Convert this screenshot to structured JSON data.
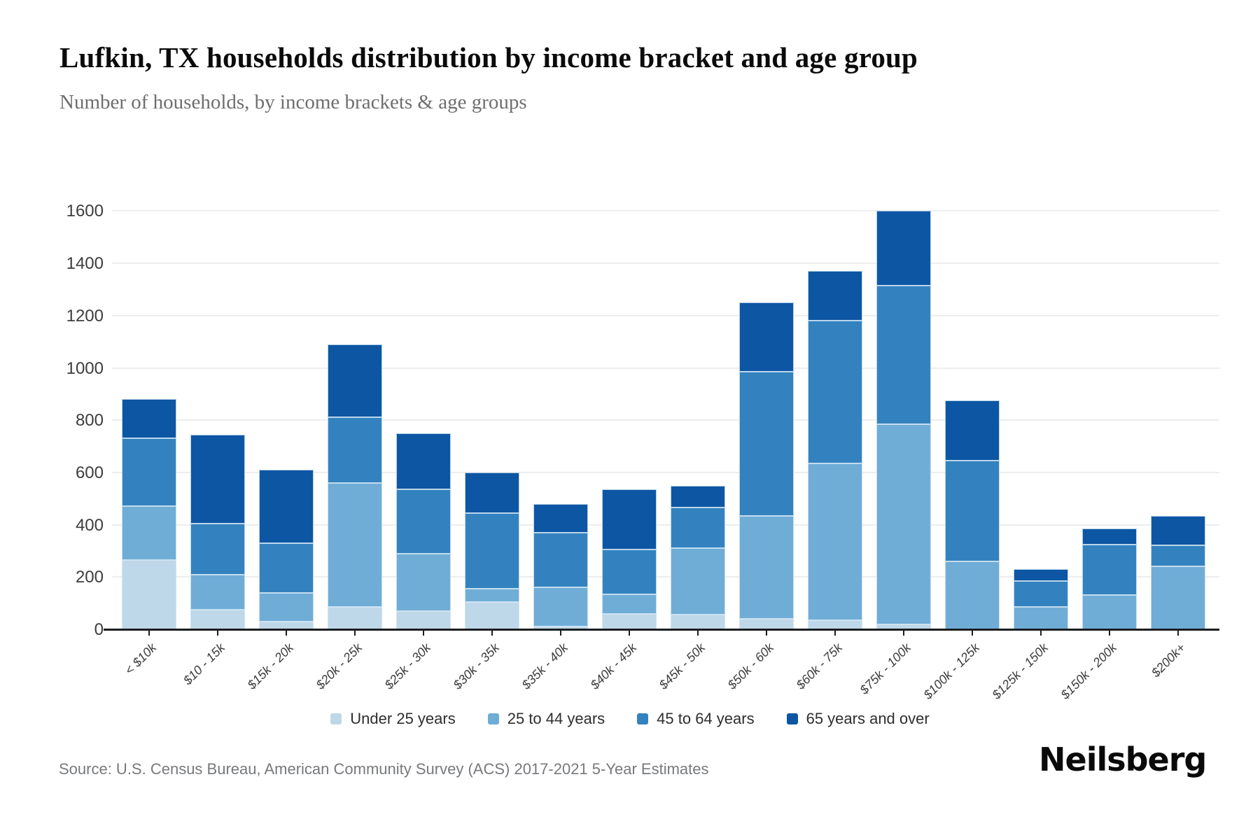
{
  "header": {
    "title": "Lufkin, TX households distribution by income bracket and age group",
    "subtitle": "Number of households, by income brackets & age groups"
  },
  "footer": {
    "source": "Source: U.S. Census Bureau, American Community Survey (ACS) 2017-2021 5-Year Estimates",
    "brand": "Neilsberg"
  },
  "colors": {
    "under25": "#bed8e9",
    "age25to44": "#6fadd7",
    "age45to64": "#3382bf",
    "age65plus": "#0d56a4",
    "gridline": "#ededed",
    "axis": "#1b1e21"
  },
  "chart_data": {
    "type": "bar",
    "stacked": true,
    "title": "Lufkin, TX households distribution by income bracket and age group",
    "subtitle": "Number of households, by income brackets & age groups",
    "xlabel": "",
    "ylabel": "Number of households",
    "ylim": [
      0,
      1600
    ],
    "y_ticks": [
      0,
      200,
      400,
      600,
      800,
      1000,
      1200,
      1400,
      1600
    ],
    "grid": true,
    "legend_position": "bottom",
    "categories": [
      "< $10k",
      "$10 - 15k",
      "$15k - 20k",
      "$20k - 25k",
      "$25k - 30k",
      "$30k - 35k",
      "$35k - 40k",
      "$40k - 45k",
      "$45k - 50k",
      "$50k - 60k",
      "$60k - 75k",
      "$75k - 100k",
      "$100k - 125k",
      "$125k - 150k",
      "$150k - 200k",
      "$200k+"
    ],
    "series": [
      {
        "name": "Under 25 years",
        "color": "#bed8e9",
        "values": [
          265,
          75,
          30,
          85,
          70,
          105,
          10,
          60,
          55,
          40,
          35,
          20,
          0,
          0,
          0,
          0
        ]
      },
      {
        "name": "25 to 44 years",
        "color": "#6fadd7",
        "values": [
          205,
          135,
          110,
          475,
          220,
          50,
          150,
          75,
          255,
          395,
          600,
          765,
          260,
          85,
          130,
          240
        ]
      },
      {
        "name": "45 to 64 years",
        "color": "#3382bf",
        "values": [
          260,
          195,
          190,
          250,
          245,
          290,
          210,
          170,
          155,
          550,
          545,
          530,
          385,
          100,
          195,
          80
        ]
      },
      {
        "name": "65 years and over",
        "color": "#0d56a4",
        "values": [
          150,
          340,
          280,
          280,
          215,
          155,
          110,
          230,
          85,
          265,
          190,
          285,
          230,
          45,
          60,
          115
        ]
      }
    ]
  }
}
